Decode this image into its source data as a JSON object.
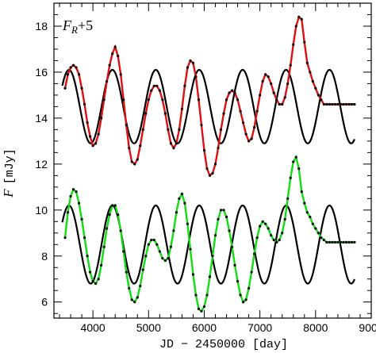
{
  "chart_data": {
    "type": "line",
    "title": "",
    "xlabel": "JD − 2450000 [day]",
    "ylabel_main": "F",
    "ylabel_unit": "[mJy]",
    "annotation": {
      "main": "F",
      "sub": "R",
      "suffix": "+5"
    },
    "xlim": [
      3300,
      9000
    ],
    "ylim": [
      5.3,
      19.0
    ],
    "x_ticks": [
      4000,
      5000,
      6000,
      7000,
      8000,
      9000
    ],
    "x_tick_labels": [
      "4000",
      "5000",
      "6000",
      "7000",
      "8000",
      "9000"
    ],
    "y_ticks": [
      6,
      8,
      10,
      12,
      14,
      16,
      18
    ],
    "y_tick_labels": [
      "6",
      "8",
      "10",
      "12",
      "14",
      "16",
      "18"
    ],
    "grid": false,
    "legend": "none",
    "colors": {
      "red_series": "#dd1111",
      "green_series": "#11dd11",
      "model": "#000000",
      "points": "#000000"
    },
    "series": [
      {
        "color_key": "red_series",
        "style": "line+markers",
        "x": [
          3500,
          3550,
          3600,
          3650,
          3700,
          3750,
          3800,
          3850,
          3900,
          3950,
          4000,
          4050,
          4100,
          4150,
          4200,
          4250,
          4300,
          4350,
          4400,
          4450,
          4500,
          4550,
          4600,
          4650,
          4700,
          4750,
          4800,
          4850,
          4900,
          4950,
          5000,
          5050,
          5100,
          5150,
          5200,
          5250,
          5300,
          5350,
          5400,
          5450,
          5500,
          5550,
          5600,
          5650,
          5700,
          5750,
          5800,
          5850,
          5900,
          5950,
          6000,
          6050,
          6100,
          6150,
          6200,
          6250,
          6300,
          6350,
          6400,
          6450,
          6500,
          6550,
          6600,
          6650,
          6700,
          6750,
          6800,
          6850,
          6900,
          6950,
          7000,
          7050,
          7100,
          7150,
          7200,
          7250,
          7300,
          7350,
          7400,
          7450,
          7500,
          7550,
          7600,
          7650,
          7700,
          7750,
          7800,
          7850,
          7900,
          7950,
          8000,
          8050,
          8100,
          8150,
          8200,
          8250,
          8300,
          8350,
          8400,
          8450,
          8500,
          8550,
          8600,
          8650,
          8700
        ],
        "y": [
          15.3,
          15.9,
          16.2,
          16.3,
          16.2,
          15.9,
          15.3,
          14.6,
          13.8,
          13.2,
          12.8,
          12.9,
          13.3,
          14.0,
          14.8,
          15.6,
          16.3,
          16.8,
          17.1,
          16.7,
          15.9,
          14.8,
          13.7,
          12.7,
          12.1,
          12.0,
          12.2,
          12.8,
          13.5,
          14.2,
          14.8,
          15.2,
          15.4,
          15.4,
          15.2,
          14.8,
          14.2,
          13.5,
          12.9,
          12.7,
          12.9,
          13.5,
          14.4,
          15.4,
          16.2,
          16.5,
          16.4,
          15.8,
          14.8,
          13.7,
          12.6,
          11.8,
          11.5,
          11.6,
          12.0,
          12.7,
          13.5,
          14.2,
          14.8,
          15.1,
          15.2,
          15.1,
          14.8,
          14.3,
          13.8,
          13.3,
          13.0,
          13.1,
          13.6,
          14.3,
          15.0,
          15.6,
          15.9,
          15.8,
          15.5,
          15.1,
          14.8,
          14.6,
          14.6,
          14.9,
          15.5,
          16.3,
          17.2,
          18.0,
          18.4,
          18.3,
          17.3,
          16.4,
          16.0,
          15.6,
          15.3,
          15.0,
          14.8,
          14.6,
          14.6,
          14.6,
          14.6,
          14.6,
          14.6,
          14.6,
          14.6,
          14.6,
          14.6,
          14.6,
          14.6
        ]
      },
      {
        "color_key": "green_series",
        "style": "line+markers",
        "x": [
          3500,
          3550,
          3600,
          3650,
          3700,
          3750,
          3800,
          3850,
          3900,
          3950,
          4000,
          4050,
          4100,
          4150,
          4200,
          4250,
          4300,
          4350,
          4400,
          4450,
          4500,
          4550,
          4600,
          4650,
          4700,
          4750,
          4800,
          4850,
          4900,
          4950,
          5000,
          5050,
          5100,
          5150,
          5200,
          5250,
          5300,
          5350,
          5400,
          5450,
          5500,
          5550,
          5600,
          5650,
          5700,
          5750,
          5800,
          5850,
          5900,
          5950,
          6000,
          6050,
          6100,
          6150,
          6200,
          6250,
          6300,
          6350,
          6400,
          6450,
          6500,
          6550,
          6600,
          6650,
          6700,
          6750,
          6800,
          6850,
          6900,
          6950,
          7000,
          7050,
          7100,
          7150,
          7200,
          7250,
          7300,
          7350,
          7400,
          7450,
          7500,
          7550,
          7600,
          7650,
          7700,
          7750,
          7800,
          7850,
          7900,
          7950,
          8000,
          8050,
          8100,
          8150,
          8200,
          8250,
          8300,
          8350,
          8400,
          8450,
          8500,
          8550,
          8600,
          8650,
          8700
        ],
        "y": [
          8.8,
          9.9,
          10.6,
          10.9,
          10.8,
          10.3,
          9.6,
          8.8,
          8.0,
          7.3,
          6.9,
          6.8,
          7.0,
          7.6,
          8.4,
          9.2,
          9.8,
          10.2,
          10.2,
          9.8,
          9.1,
          8.2,
          7.3,
          6.6,
          6.1,
          6.0,
          6.2,
          6.7,
          7.4,
          8.0,
          8.5,
          8.7,
          8.7,
          8.5,
          8.2,
          7.9,
          7.8,
          7.9,
          8.4,
          9.1,
          9.9,
          10.5,
          10.7,
          10.3,
          9.4,
          8.3,
          7.2,
          6.3,
          5.7,
          5.6,
          5.8,
          6.3,
          7.1,
          8.0,
          8.9,
          9.6,
          10.0,
          10.0,
          9.7,
          9.1,
          8.4,
          7.6,
          6.9,
          6.3,
          6.0,
          6.1,
          6.6,
          7.3,
          8.1,
          8.8,
          9.3,
          9.5,
          9.4,
          9.2,
          8.9,
          8.7,
          8.6,
          8.7,
          9.0,
          9.6,
          10.5,
          11.4,
          12.1,
          12.3,
          11.8,
          10.8,
          10.3,
          9.9,
          9.7,
          9.4,
          9.2,
          9.0,
          8.8,
          8.7,
          8.6,
          8.6,
          8.6,
          8.6,
          8.6,
          8.6,
          8.6,
          8.6,
          8.6,
          8.6,
          8.6
        ]
      },
      {
        "color_key": "model",
        "style": "line",
        "model": {
          "offset": 14.5,
          "amplitude": 1.6,
          "period": 780,
          "phase_x": 4350,
          "x_start": 3450,
          "x_end": 8700
        }
      },
      {
        "color_key": "model",
        "style": "line",
        "model": {
          "offset": 8.5,
          "amplitude": 1.7,
          "period": 780,
          "phase_x": 4350,
          "x_start": 3450,
          "x_end": 8700
        }
      }
    ]
  }
}
